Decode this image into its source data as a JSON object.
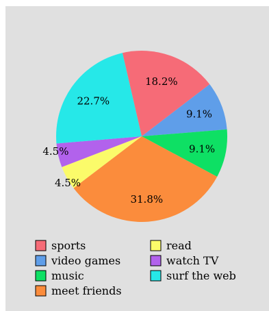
{
  "chart_data": {
    "type": "pie",
    "title": "",
    "categories": [
      "sports",
      "video games",
      "music",
      "meet friends",
      "read",
      "watch TV",
      "surf the web"
    ],
    "values": [
      18.2,
      9.1,
      9.1,
      31.8,
      4.5,
      4.5,
      22.7
    ],
    "value_labels": [
      "18.2%",
      "9.1%",
      "9.1%",
      "31.8%",
      "4.5%",
      "4.5%",
      "22.7%"
    ],
    "colors": [
      "#f66b77",
      "#5f9ee9",
      "#0ee064",
      "#fb8c3c",
      "#fbfb6a",
      "#b262ec",
      "#26e8e8"
    ],
    "legend": {
      "position": "bottom",
      "columns": 2
    }
  }
}
